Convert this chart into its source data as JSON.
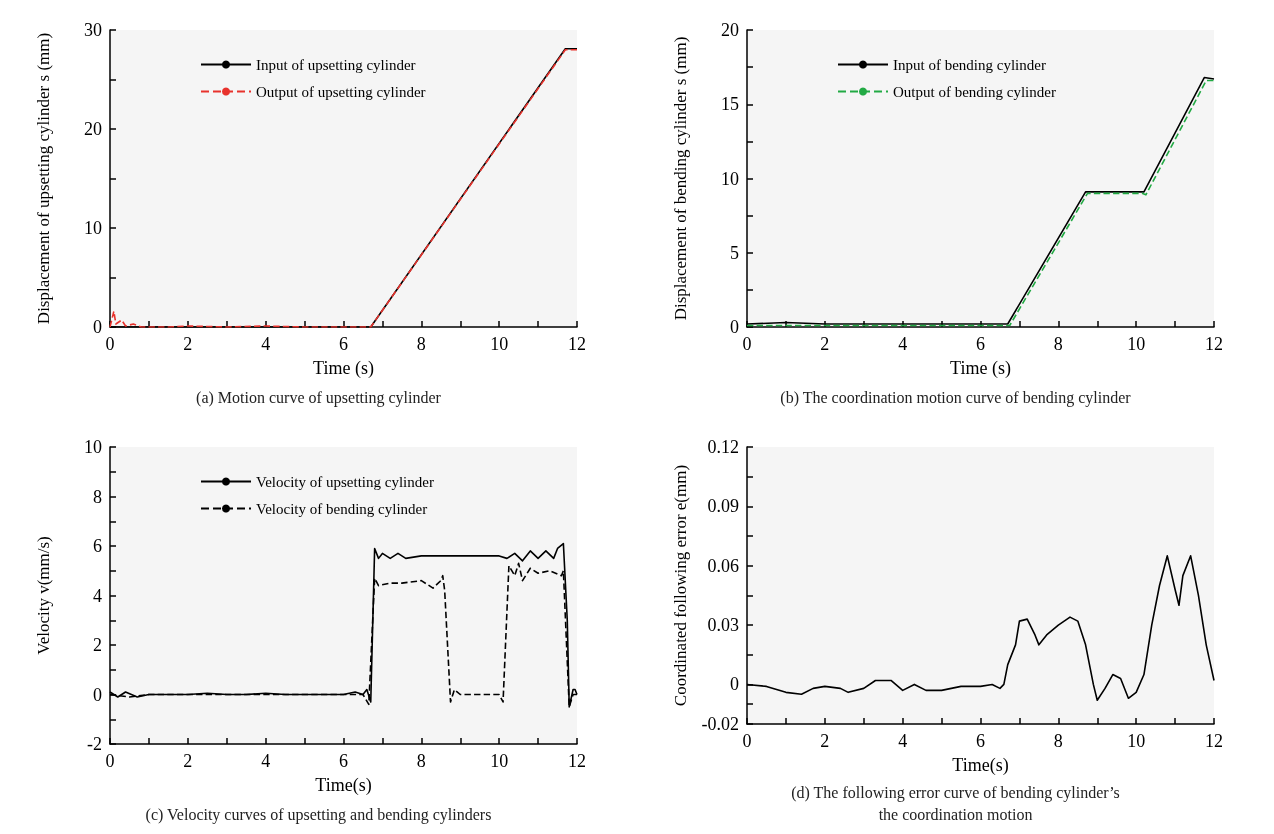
{
  "chart_data": [
    {
      "type": "line",
      "title": "(a) Motion curve of upsetting cylinder",
      "xlabel": "Time (s)",
      "ylabel": "Displacement of upsetting cylinder s (mm)",
      "xlim": [
        0,
        12
      ],
      "ylim": [
        0,
        30
      ],
      "xticks": [
        0,
        {
          "value": 1,
          "label": null
        },
        2,
        {
          "value": 3,
          "label": null
        },
        4,
        {
          "value": 5,
          "label": null
        },
        6,
        {
          "value": 7,
          "label": null
        },
        8,
        {
          "value": 9,
          "label": null
        },
        10,
        {
          "value": 11,
          "label": null
        },
        12
      ],
      "yticks": [
        0,
        {
          "value": 5,
          "label": null
        },
        10,
        {
          "value": 15,
          "label": null
        },
        20,
        {
          "value": 25,
          "label": null
        },
        30
      ],
      "legend": "top left",
      "grid": false,
      "series": [
        {
          "name": "Input of upsetting cylinder",
          "color": "#000000",
          "line_style": "solid",
          "x": [
            0,
            6.7,
            11.7,
            12
          ],
          "values": [
            0,
            0,
            28.1,
            28.1
          ]
        },
        {
          "name": "Output of upsetting cylinder",
          "color": "#e8322c",
          "line_style": "dashed",
          "x": [
            0,
            0.1,
            0.15,
            0.3,
            0.4,
            0.6,
            0.8,
            1.0,
            1.5,
            2,
            3,
            4,
            5,
            6.7,
            11.7,
            12
          ],
          "values": [
            0,
            1.6,
            0.3,
            0.7,
            0.1,
            0.3,
            0,
            0,
            0,
            0.1,
            0,
            0.1,
            0,
            0,
            28,
            28
          ]
        }
      ]
    },
    {
      "type": "line",
      "title": "(b) The coordination motion curve of bending cylinder",
      "xlabel": "Time (s)",
      "ylabel": "Displacement of bending cylinder s (mm)",
      "xlim": [
        0,
        12
      ],
      "ylim": [
        0,
        20
      ],
      "xticks": [
        0,
        {
          "value": 1,
          "label": null
        },
        2,
        {
          "value": 3,
          "label": null
        },
        4,
        {
          "value": 5,
          "label": null
        },
        6,
        {
          "value": 7,
          "label": null
        },
        8,
        {
          "value": 9,
          "label": null
        },
        10,
        {
          "value": 11,
          "label": null
        },
        12
      ],
      "yticks": [
        0,
        {
          "value": 2.5,
          "label": null
        },
        5,
        {
          "value": 7.5,
          "label": null
        },
        10,
        {
          "value": 12.5,
          "label": null
        },
        15,
        {
          "value": 17.5,
          "label": null
        },
        20
      ],
      "legend": "top left",
      "grid": false,
      "series": [
        {
          "name": "Input of bending cylinder",
          "color": "#000000",
          "line_style": "solid",
          "x": [
            0,
            1,
            2,
            3,
            4,
            5,
            6,
            6.7,
            8.7,
            10.2,
            11.75,
            12
          ],
          "values": [
            0.2,
            0.3,
            0.2,
            0.2,
            0.2,
            0.2,
            0.2,
            0.2,
            9.1,
            9.1,
            16.8,
            16.7
          ]
        },
        {
          "name": "Output of bending cylinder",
          "color": "#22aa44",
          "line_style": "dashed",
          "x": [
            0,
            6.75,
            8.75,
            10.15,
            10.25,
            11.8,
            12
          ],
          "values": [
            0.1,
            0.1,
            9.0,
            9.0,
            8.9,
            16.6,
            16.6
          ]
        }
      ]
    },
    {
      "type": "line",
      "title": "(c) Velocity curves of upsetting and bending cylinders",
      "xlabel": "Time(s)",
      "ylabel": "Velocity v(mm/s)",
      "xlim": [
        0,
        12
      ],
      "ylim": [
        -2,
        10
      ],
      "xticks": [
        0,
        {
          "value": 1,
          "label": null
        },
        2,
        {
          "value": 3,
          "label": null
        },
        4,
        {
          "value": 5,
          "label": null
        },
        6,
        {
          "value": 7,
          "label": null
        },
        8,
        {
          "value": 9,
          "label": null
        },
        10,
        {
          "value": 11,
          "label": null
        },
        12
      ],
      "yticks": [
        -2,
        {
          "value": -1,
          "label": null
        },
        0,
        {
          "value": 1,
          "label": null
        },
        2,
        {
          "value": 3,
          "label": null
        },
        4,
        {
          "value": 5,
          "label": null
        },
        6,
        {
          "value": 7,
          "label": null
        },
        8,
        {
          "value": 9,
          "label": null
        },
        10
      ],
      "legend": "top left",
      "grid": false,
      "series": [
        {
          "name": "Velocity of upsetting cylinder",
          "color": "#000000",
          "line_style": "solid",
          "x": [
            0,
            0.2,
            0.4,
            0.7,
            1,
            1.5,
            2,
            2.5,
            3,
            3.5,
            4,
            4.5,
            5,
            5.5,
            6,
            6.3,
            6.5,
            6.6,
            6.7,
            6.8,
            6.9,
            7.0,
            7.2,
            7.4,
            7.6,
            8,
            8.5,
            9,
            9.5,
            10,
            10.2,
            10.4,
            10.6,
            10.8,
            11,
            11.2,
            11.4,
            11.5,
            11.65,
            11.75,
            11.8,
            11.9,
            11.95,
            12
          ],
          "values": [
            0.1,
            -0.1,
            0.1,
            -0.1,
            0,
            0,
            0,
            0.05,
            0,
            0,
            0.05,
            0,
            0,
            0,
            0,
            0.1,
            0,
            0.2,
            -0.3,
            5.9,
            5.5,
            5.7,
            5.5,
            5.7,
            5.5,
            5.6,
            5.6,
            5.6,
            5.6,
            5.6,
            5.5,
            5.7,
            5.4,
            5.8,
            5.5,
            5.8,
            5.5,
            5.9,
            6.1,
            3,
            -0.5,
            0.2,
            0.2,
            0
          ]
        },
        {
          "name": "Velocity of bending cylinder",
          "color": "#000000",
          "line_style": "dashed",
          "x": [
            0,
            0.5,
            1,
            2,
            3,
            4,
            5,
            6,
            6.5,
            6.65,
            6.8,
            6.9,
            7.2,
            7.5,
            8,
            8.3,
            8.5,
            8.55,
            8.6,
            8.75,
            8.85,
            9,
            9.5,
            10,
            10.1,
            10.25,
            10.4,
            10.5,
            10.6,
            10.8,
            11,
            11.3,
            11.6,
            11.65,
            11.8,
            11.9,
            12
          ],
          "values": [
            0,
            -0.1,
            0,
            0,
            0,
            0,
            0,
            0,
            0,
            -0.4,
            4.7,
            4.4,
            4.5,
            4.5,
            4.6,
            4.3,
            4.6,
            4.8,
            4.2,
            -0.3,
            0.2,
            0,
            0,
            0,
            -0.3,
            5.2,
            4.8,
            5.3,
            4.6,
            5.1,
            4.9,
            5.0,
            4.8,
            5.0,
            -0.5,
            0,
            0
          ]
        }
      ]
    },
    {
      "type": "line",
      "title": "(d) The following error curve of bending cylinder’s\nthe coordination motion",
      "xlabel": "Time(s)",
      "ylabel": "Coordinated following error e(mm)",
      "xlim": [
        0,
        12
      ],
      "ylim": [
        -0.02,
        0.12
      ],
      "xticks": [
        0,
        {
          "value": 1,
          "label": null
        },
        2,
        {
          "value": 3,
          "label": null
        },
        4,
        {
          "value": 5,
          "label": null
        },
        6,
        {
          "value": 7,
          "label": null
        },
        8,
        {
          "value": 9,
          "label": null
        },
        10,
        {
          "value": 11,
          "label": null
        },
        12
      ],
      "yticks": [
        -0.02,
        {
          "value": -0.01,
          "label": null
        },
        0,
        {
          "value": 0.015,
          "label": null
        },
        0.03,
        {
          "value": 0.045,
          "label": null
        },
        0.06,
        {
          "value": 0.075,
          "label": null
        },
        0.09,
        {
          "value": 0.105,
          "label": null
        },
        0.12
      ],
      "grid": false,
      "series": [
        {
          "color": "#000000",
          "line_style": "solid",
          "x": [
            0,
            0.5,
            1,
            1.4,
            1.7,
            2,
            2.4,
            2.6,
            3,
            3.3,
            3.7,
            4,
            4.3,
            4.6,
            5,
            5.5,
            6,
            6.3,
            6.5,
            6.6,
            6.7,
            6.9,
            7,
            7.2,
            7.4,
            7.5,
            7.7,
            8,
            8.3,
            8.5,
            8.7,
            8.9,
            9,
            9.2,
            9.4,
            9.6,
            9.8,
            10,
            10.2,
            10.4,
            10.6,
            10.8,
            11,
            11.1,
            11.2,
            11.4,
            11.6,
            11.8,
            12
          ],
          "values": [
            0,
            -0.001,
            -0.004,
            -0.005,
            -0.002,
            -0.001,
            -0.002,
            -0.004,
            -0.002,
            0.002,
            0.002,
            -0.003,
            0,
            -0.003,
            -0.003,
            -0.001,
            -0.001,
            0,
            -0.002,
            0,
            0.01,
            0.02,
            0.032,
            0.033,
            0.025,
            0.02,
            0.025,
            0.03,
            0.034,
            0.032,
            0.02,
            0,
            -0.008,
            -0.002,
            0.005,
            0.003,
            -0.007,
            -0.004,
            0.005,
            0.03,
            0.05,
            0.065,
            0.048,
            0.04,
            0.055,
            0.065,
            0.045,
            0.02,
            0.002
          ]
        }
      ]
    }
  ]
}
